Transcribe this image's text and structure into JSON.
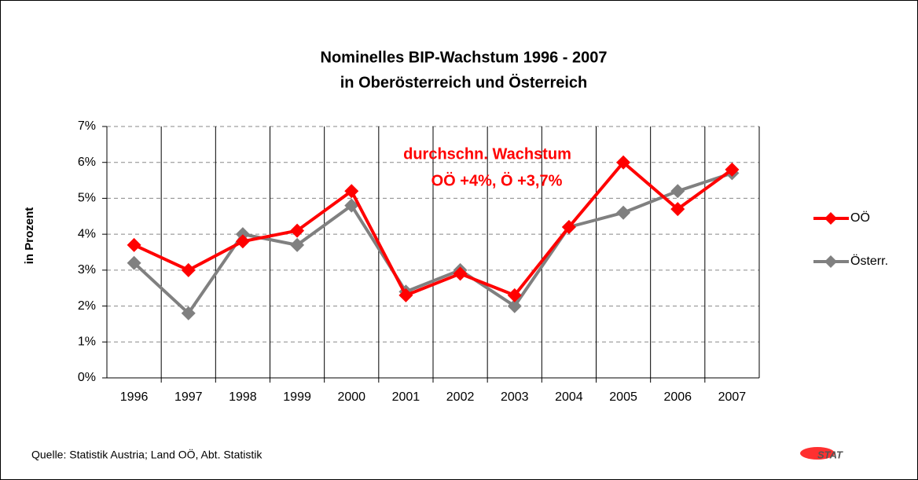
{
  "chart_data": {
    "type": "line",
    "title": [
      "Nominelles BIP-Wachstum 1996 - 2007",
      "in Oberösterreich und Österreich"
    ],
    "annotation": [
      "durchschn. Wachstum",
      "OÖ +4%, Ö +3,7%"
    ],
    "y_label": "in Prozent",
    "source": "Quelle: Statistik Austria; Land OÖ, Abt. Statistik",
    "logo": "STAT",
    "categories": [
      "1996",
      "1997",
      "1998",
      "1999",
      "2000",
      "2001",
      "2002",
      "2003",
      "2004",
      "2005",
      "2006",
      "2007"
    ],
    "series": [
      {
        "name": "OÖ",
        "color": "#ff0000",
        "values": [
          3.7,
          3.0,
          3.8,
          4.1,
          5.2,
          2.3,
          2.9,
          2.3,
          4.2,
          6.0,
          4.7,
          5.8
        ]
      },
      {
        "name": "Österr.",
        "color": "#808080",
        "values": [
          3.2,
          1.8,
          4.0,
          3.7,
          4.8,
          2.4,
          3.0,
          2.0,
          4.2,
          4.6,
          5.2,
          5.7
        ]
      }
    ],
    "ylim": [
      0,
      7
    ],
    "yticks": [
      {
        "value": 0,
        "label": "0%"
      },
      {
        "value": 1,
        "label": "1%"
      },
      {
        "value": 2,
        "label": "2%"
      },
      {
        "value": 3,
        "label": "3%"
      },
      {
        "value": 4,
        "label": "4%"
      },
      {
        "value": 5,
        "label": "5%"
      },
      {
        "value": 6,
        "label": "6%"
      },
      {
        "value": 7,
        "label": "7%"
      }
    ],
    "grid": true,
    "legend": "right"
  }
}
